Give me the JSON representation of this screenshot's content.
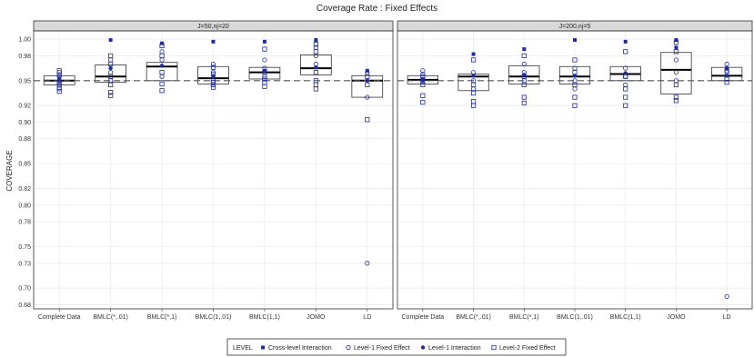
{
  "chart_data": {
    "type": "boxplot",
    "title": "Coverage Rate : Fixed Effects",
    "ylabel": "COVERAGE",
    "xlabel": "",
    "ylim": [
      0.675,
      1.01
    ],
    "yticks": [
      0.68,
      0.7,
      0.73,
      0.75,
      0.78,
      0.8,
      0.82,
      0.85,
      0.88,
      0.9,
      0.92,
      0.95,
      0.98,
      1.0
    ],
    "ytick_labels": [
      "0.68",
      "0.70",
      "0.73",
      "0.75",
      "0.78",
      "0.80",
      "0.82",
      "0.85",
      "0.88",
      "0.90",
      "0.92",
      "0.95",
      "0.98",
      "1.00"
    ],
    "reference_line": 0.95,
    "grid": true,
    "legend_position": "bottom",
    "categories": [
      "Complete Data",
      "BMLC(*,.01)",
      "BMLC(*,1)",
      "BMLC(1,.01)",
      "BMLC(1,1)",
      "JOMO",
      "LD"
    ],
    "legend": {
      "title": "LEVEL",
      "entries": [
        {
          "key": "cross",
          "label": "Cross-level Interaction",
          "marker": "filled-square"
        },
        {
          "key": "l1fe",
          "label": "Level-1 Fixed Effect",
          "marker": "open-circle"
        },
        {
          "key": "l1int",
          "label": "Level-1 Interaction",
          "marker": "filled-circle"
        },
        {
          "key": "l2fe",
          "label": "Level-2 Fixed Effect",
          "marker": "open-square"
        }
      ]
    },
    "colors": {
      "marker": "#1f2e9c",
      "box": "#333333",
      "panel_border": "#333333",
      "strip_bg": "#d9d9d9",
      "grid": "#ebebeb",
      "refline": "#555555"
    },
    "panels": [
      {
        "label": "J=50,nj=20",
        "boxes": [
          {
            "q1": 0.945,
            "median": 0.95,
            "q3": 0.956,
            "points": [
              {
                "y": 0.95,
                "m": "cross"
              },
              {
                "y": 0.945,
                "m": "l1fe"
              },
              {
                "y": 0.955,
                "m": "l1fe"
              },
              {
                "y": 0.94,
                "m": "l1fe"
              },
              {
                "y": 0.96,
                "m": "l1fe"
              },
              {
                "y": 0.952,
                "m": "l1int"
              },
              {
                "y": 0.937,
                "m": "l2fe"
              },
              {
                "y": 0.942,
                "m": "l2fe"
              },
              {
                "y": 0.948,
                "m": "l2fe"
              },
              {
                "y": 0.957,
                "m": "l2fe"
              },
              {
                "y": 0.962,
                "m": "l2fe"
              }
            ]
          },
          {
            "q1": 0.948,
            "median": 0.955,
            "q3": 0.969,
            "points": [
              {
                "y": 0.999,
                "m": "cross"
              },
              {
                "y": 0.96,
                "m": "l1fe"
              },
              {
                "y": 0.975,
                "m": "l1fe"
              },
              {
                "y": 0.95,
                "m": "l1fe"
              },
              {
                "y": 0.965,
                "m": "l1int"
              },
              {
                "y": 0.932,
                "m": "l2fe"
              },
              {
                "y": 0.936,
                "m": "l2fe"
              },
              {
                "y": 0.945,
                "m": "l2fe"
              },
              {
                "y": 0.955,
                "m": "l2fe"
              },
              {
                "y": 0.97,
                "m": "l2fe"
              },
              {
                "y": 0.98,
                "m": "l2fe"
              }
            ]
          },
          {
            "q1": 0.95,
            "median": 0.967,
            "q3": 0.972,
            "points": [
              {
                "y": 0.995,
                "m": "cross"
              },
              {
                "y": 0.975,
                "m": "l1fe"
              },
              {
                "y": 0.955,
                "m": "l1fe"
              },
              {
                "y": 0.985,
                "m": "l1fe"
              },
              {
                "y": 0.968,
                "m": "l1int"
              },
              {
                "y": 0.938,
                "m": "l2fe"
              },
              {
                "y": 0.946,
                "m": "l2fe"
              },
              {
                "y": 0.96,
                "m": "l2fe"
              },
              {
                "y": 0.98,
                "m": "l2fe"
              },
              {
                "y": 0.992,
                "m": "l2fe"
              }
            ]
          },
          {
            "q1": 0.946,
            "median": 0.953,
            "q3": 0.967,
            "points": [
              {
                "y": 0.997,
                "m": "cross"
              },
              {
                "y": 0.95,
                "m": "l1fe"
              },
              {
                "y": 0.96,
                "m": "l1fe"
              },
              {
                "y": 0.97,
                "m": "l1fe"
              },
              {
                "y": 0.955,
                "m": "l1int"
              },
              {
                "y": 0.942,
                "m": "l2fe"
              },
              {
                "y": 0.945,
                "m": "l2fe"
              },
              {
                "y": 0.948,
                "m": "l2fe"
              },
              {
                "y": 0.958,
                "m": "l2fe"
              },
              {
                "y": 0.966,
                "m": "l2fe"
              }
            ]
          },
          {
            "q1": 0.952,
            "median": 0.96,
            "q3": 0.966,
            "points": [
              {
                "y": 0.997,
                "m": "cross"
              },
              {
                "y": 0.955,
                "m": "l1fe"
              },
              {
                "y": 0.965,
                "m": "l1fe"
              },
              {
                "y": 0.975,
                "m": "l1fe"
              },
              {
                "y": 0.962,
                "m": "l1int"
              },
              {
                "y": 0.943,
                "m": "l2fe"
              },
              {
                "y": 0.948,
                "m": "l2fe"
              },
              {
                "y": 0.952,
                "m": "l2fe"
              },
              {
                "y": 0.96,
                "m": "l2fe"
              },
              {
                "y": 0.988,
                "m": "l2fe"
              }
            ]
          },
          {
            "q1": 0.957,
            "median": 0.965,
            "q3": 0.981,
            "points": [
              {
                "y": 0.999,
                "m": "cross"
              },
              {
                "y": 0.97,
                "m": "l1fe"
              },
              {
                "y": 0.98,
                "m": "l1fe"
              },
              {
                "y": 0.99,
                "m": "l1fe"
              },
              {
                "y": 0.966,
                "m": "l1int"
              },
              {
                "y": 0.94,
                "m": "l2fe"
              },
              {
                "y": 0.945,
                "m": "l2fe"
              },
              {
                "y": 0.95,
                "m": "l2fe"
              },
              {
                "y": 0.96,
                "m": "l2fe"
              },
              {
                "y": 0.985,
                "m": "l2fe"
              },
              {
                "y": 0.994,
                "m": "l2fe"
              }
            ]
          },
          {
            "q1": 0.93,
            "median": 0.95,
            "q3": 0.956,
            "points": [
              {
                "y": 0.962,
                "m": "cross"
              },
              {
                "y": 0.73,
                "m": "l1fe"
              },
              {
                "y": 0.96,
                "m": "l1fe"
              },
              {
                "y": 0.93,
                "m": "l1fe"
              },
              {
                "y": 0.95,
                "m": "l1int"
              },
              {
                "y": 0.903,
                "m": "l2fe"
              },
              {
                "y": 0.945,
                "m": "l2fe"
              },
              {
                "y": 0.955,
                "m": "l2fe"
              }
            ]
          }
        ]
      },
      {
        "label": "J=200,nj=5",
        "boxes": [
          {
            "q1": 0.946,
            "median": 0.951,
            "q3": 0.956,
            "points": [
              {
                "y": 0.952,
                "m": "cross"
              },
              {
                "y": 0.948,
                "m": "l1fe"
              },
              {
                "y": 0.958,
                "m": "l1fe"
              },
              {
                "y": 0.962,
                "m": "l1fe"
              },
              {
                "y": 0.95,
                "m": "l1int"
              },
              {
                "y": 0.924,
                "m": "l2fe"
              },
              {
                "y": 0.932,
                "m": "l2fe"
              },
              {
                "y": 0.945,
                "m": "l2fe"
              },
              {
                "y": 0.955,
                "m": "l2fe"
              }
            ]
          },
          {
            "q1": 0.938,
            "median": 0.955,
            "q3": 0.958,
            "points": [
              {
                "y": 0.982,
                "m": "cross"
              },
              {
                "y": 0.95,
                "m": "l1fe"
              },
              {
                "y": 0.96,
                "m": "l1fe"
              },
              {
                "y": 0.94,
                "m": "l1fe"
              },
              {
                "y": 0.956,
                "m": "l1int"
              },
              {
                "y": 0.92,
                "m": "l2fe"
              },
              {
                "y": 0.925,
                "m": "l2fe"
              },
              {
                "y": 0.935,
                "m": "l2fe"
              },
              {
                "y": 0.945,
                "m": "l2fe"
              },
              {
                "y": 0.975,
                "m": "l2fe"
              }
            ]
          },
          {
            "q1": 0.946,
            "median": 0.955,
            "q3": 0.968,
            "points": [
              {
                "y": 0.988,
                "m": "cross"
              },
              {
                "y": 0.96,
                "m": "l1fe"
              },
              {
                "y": 0.97,
                "m": "l1fe"
              },
              {
                "y": 0.95,
                "m": "l1fe"
              },
              {
                "y": 0.957,
                "m": "l1int"
              },
              {
                "y": 0.923,
                "m": "l2fe"
              },
              {
                "y": 0.93,
                "m": "l2fe"
              },
              {
                "y": 0.945,
                "m": "l2fe"
              },
              {
                "y": 0.955,
                "m": "l2fe"
              },
              {
                "y": 0.98,
                "m": "l2fe"
              }
            ]
          },
          {
            "q1": 0.946,
            "median": 0.955,
            "q3": 0.967,
            "points": [
              {
                "y": 0.999,
                "m": "cross"
              },
              {
                "y": 0.95,
                "m": "l1fe"
              },
              {
                "y": 0.965,
                "m": "l1fe"
              },
              {
                "y": 0.94,
                "m": "l1fe"
              },
              {
                "y": 0.956,
                "m": "l1int"
              },
              {
                "y": 0.92,
                "m": "l2fe"
              },
              {
                "y": 0.93,
                "m": "l2fe"
              },
              {
                "y": 0.945,
                "m": "l2fe"
              },
              {
                "y": 0.96,
                "m": "l2fe"
              },
              {
                "y": 0.975,
                "m": "l2fe"
              }
            ]
          },
          {
            "q1": 0.95,
            "median": 0.958,
            "q3": 0.967,
            "points": [
              {
                "y": 0.997,
                "m": "cross"
              },
              {
                "y": 0.955,
                "m": "l1fe"
              },
              {
                "y": 0.965,
                "m": "l1fe"
              },
              {
                "y": 0.945,
                "m": "l1fe"
              },
              {
                "y": 0.959,
                "m": "l1int"
              },
              {
                "y": 0.92,
                "m": "l2fe"
              },
              {
                "y": 0.93,
                "m": "l2fe"
              },
              {
                "y": 0.94,
                "m": "l2fe"
              },
              {
                "y": 0.955,
                "m": "l2fe"
              },
              {
                "y": 0.985,
                "m": "l2fe"
              }
            ]
          },
          {
            "q1": 0.934,
            "median": 0.963,
            "q3": 0.984,
            "points": [
              {
                "y": 0.999,
                "m": "cross"
              },
              {
                "y": 0.975,
                "m": "l1fe"
              },
              {
                "y": 0.96,
                "m": "l1fe"
              },
              {
                "y": 0.95,
                "m": "l1fe"
              },
              {
                "y": 0.99,
                "m": "l1int"
              },
              {
                "y": 0.926,
                "m": "l2fe"
              },
              {
                "y": 0.93,
                "m": "l2fe"
              },
              {
                "y": 0.945,
                "m": "l2fe"
              },
              {
                "y": 0.985,
                "m": "l2fe"
              },
              {
                "y": 0.996,
                "m": "l2fe"
              }
            ]
          },
          {
            "q1": 0.95,
            "median": 0.956,
            "q3": 0.966,
            "points": [
              {
                "y": 0.965,
                "m": "cross"
              },
              {
                "y": 0.69,
                "m": "l1fe"
              },
              {
                "y": 0.96,
                "m": "l1fe"
              },
              {
                "y": 0.97,
                "m": "l1fe"
              },
              {
                "y": 0.956,
                "m": "l1int"
              },
              {
                "y": 0.948,
                "m": "l2fe"
              },
              {
                "y": 0.952,
                "m": "l2fe"
              },
              {
                "y": 0.962,
                "m": "l2fe"
              }
            ]
          }
        ]
      }
    ]
  }
}
